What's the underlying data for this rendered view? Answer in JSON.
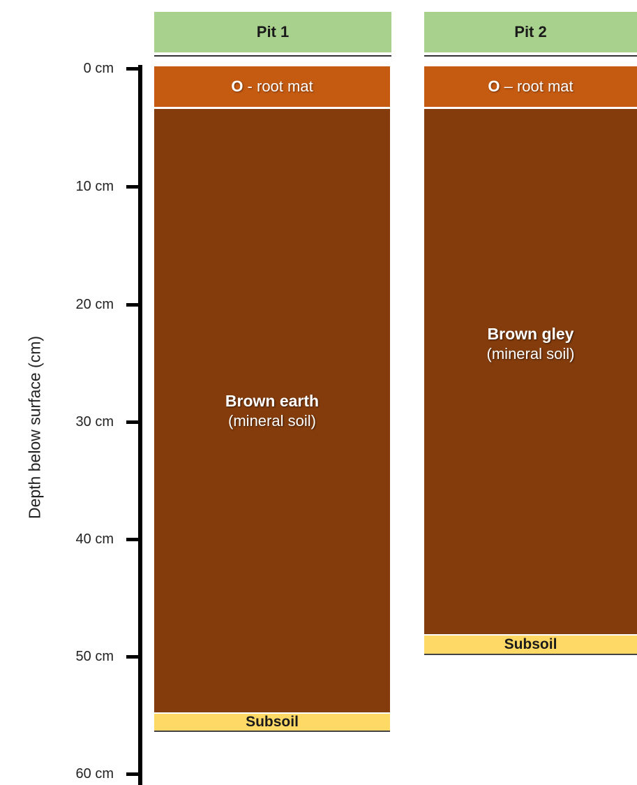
{
  "axis": {
    "title": "Depth below surface (cm)",
    "ticks": [
      "0 cm",
      "10 cm",
      "20 cm",
      "30 cm",
      "40 cm",
      "50 cm",
      "60 cm"
    ]
  },
  "pits": [
    {
      "header": "Pit 1",
      "o_layer": {
        "bold": "O",
        "rest": " - root mat"
      },
      "mineral": {
        "name": "Brown earth",
        "sub": "(mineral soil)"
      },
      "subsoil": "Subsoil"
    },
    {
      "header": "Pit 2",
      "o_layer": {
        "bold": "O",
        "rest": " – root mat"
      },
      "mineral": {
        "name": "Brown gley",
        "sub": "(mineral soil)"
      },
      "subsoil": "Subsoil"
    }
  ],
  "colors": {
    "header": "#a9d18e",
    "o_layer": "#c55a11",
    "mineral": "#843c0c",
    "subsoil": "#ffd966"
  }
}
